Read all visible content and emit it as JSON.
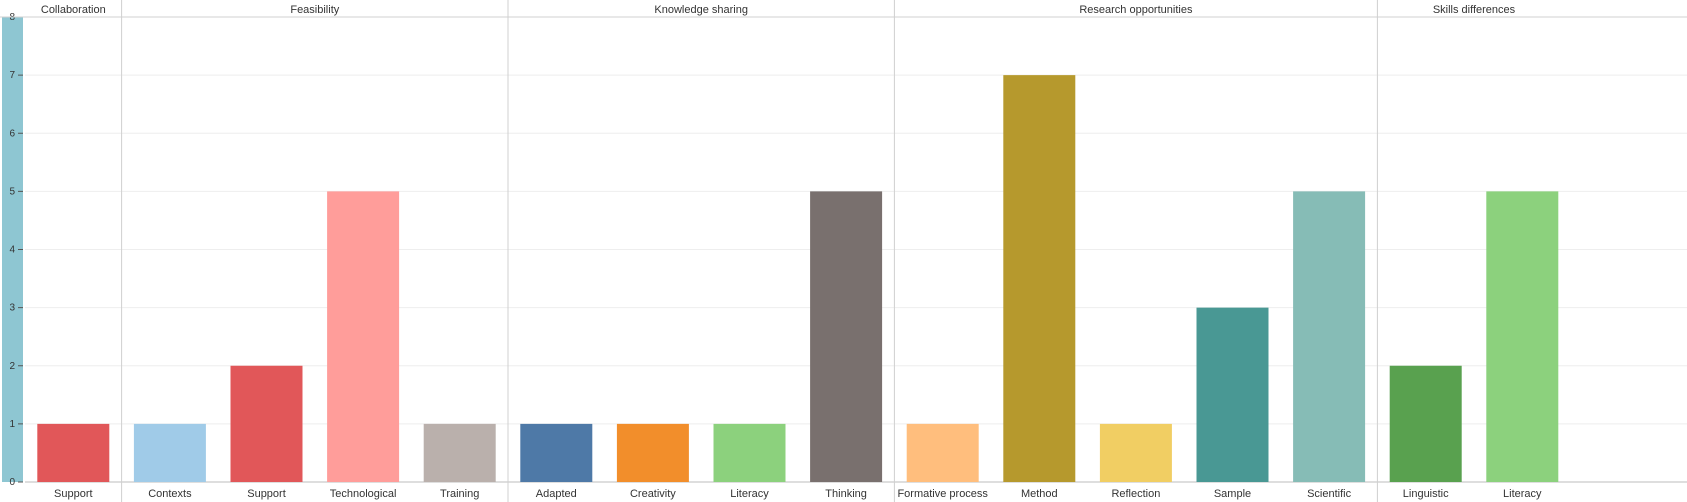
{
  "chart_data": {
    "type": "bar",
    "ylim": [
      0,
      8
    ],
    "yticks": [
      0,
      1,
      2,
      3,
      4,
      5,
      6,
      7,
      8
    ],
    "grid": true,
    "groups": [
      {
        "name": "Collaboration",
        "bars": [
          {
            "label": "Support",
            "value": 1,
            "color": "#e15759"
          }
        ]
      },
      {
        "name": "Feasibility",
        "bars": [
          {
            "label": "Contexts",
            "value": 1,
            "color": "#a0cbe8"
          },
          {
            "label": "Support",
            "value": 2,
            "color": "#e15759"
          },
          {
            "label": "Technological",
            "value": 5,
            "color": "#ff9d9a"
          },
          {
            "label": "Training",
            "value": 1,
            "color": "#bab0ac"
          }
        ]
      },
      {
        "name": "Knowledge sharing",
        "bars": [
          {
            "label": "Adapted",
            "value": 1,
            "color": "#4e79a7"
          },
          {
            "label": "Creativity",
            "value": 1,
            "color": "#f28e2b"
          },
          {
            "label": "Literacy",
            "value": 1,
            "color": "#8cd17d"
          },
          {
            "label": "Thinking",
            "value": 5,
            "color": "#79706e"
          }
        ]
      },
      {
        "name": "Research opportunities",
        "bars": [
          {
            "label": "Formative process",
            "value": 1,
            "color": "#ffbe7d"
          },
          {
            "label": "Method",
            "value": 7,
            "color": "#b6992d"
          },
          {
            "label": "Reflection",
            "value": 1,
            "color": "#f1ce63"
          },
          {
            "label": "Sample",
            "value": 3,
            "color": "#499894"
          },
          {
            "label": "Scientific",
            "value": 5,
            "color": "#86bcb6"
          }
        ]
      },
      {
        "name": "Skills differences",
        "bars": [
          {
            "label": "Linguistic",
            "value": 2,
            "color": "#59a14f"
          },
          {
            "label": "Literacy",
            "value": 5,
            "color": "#8cd17d"
          }
        ]
      }
    ]
  }
}
